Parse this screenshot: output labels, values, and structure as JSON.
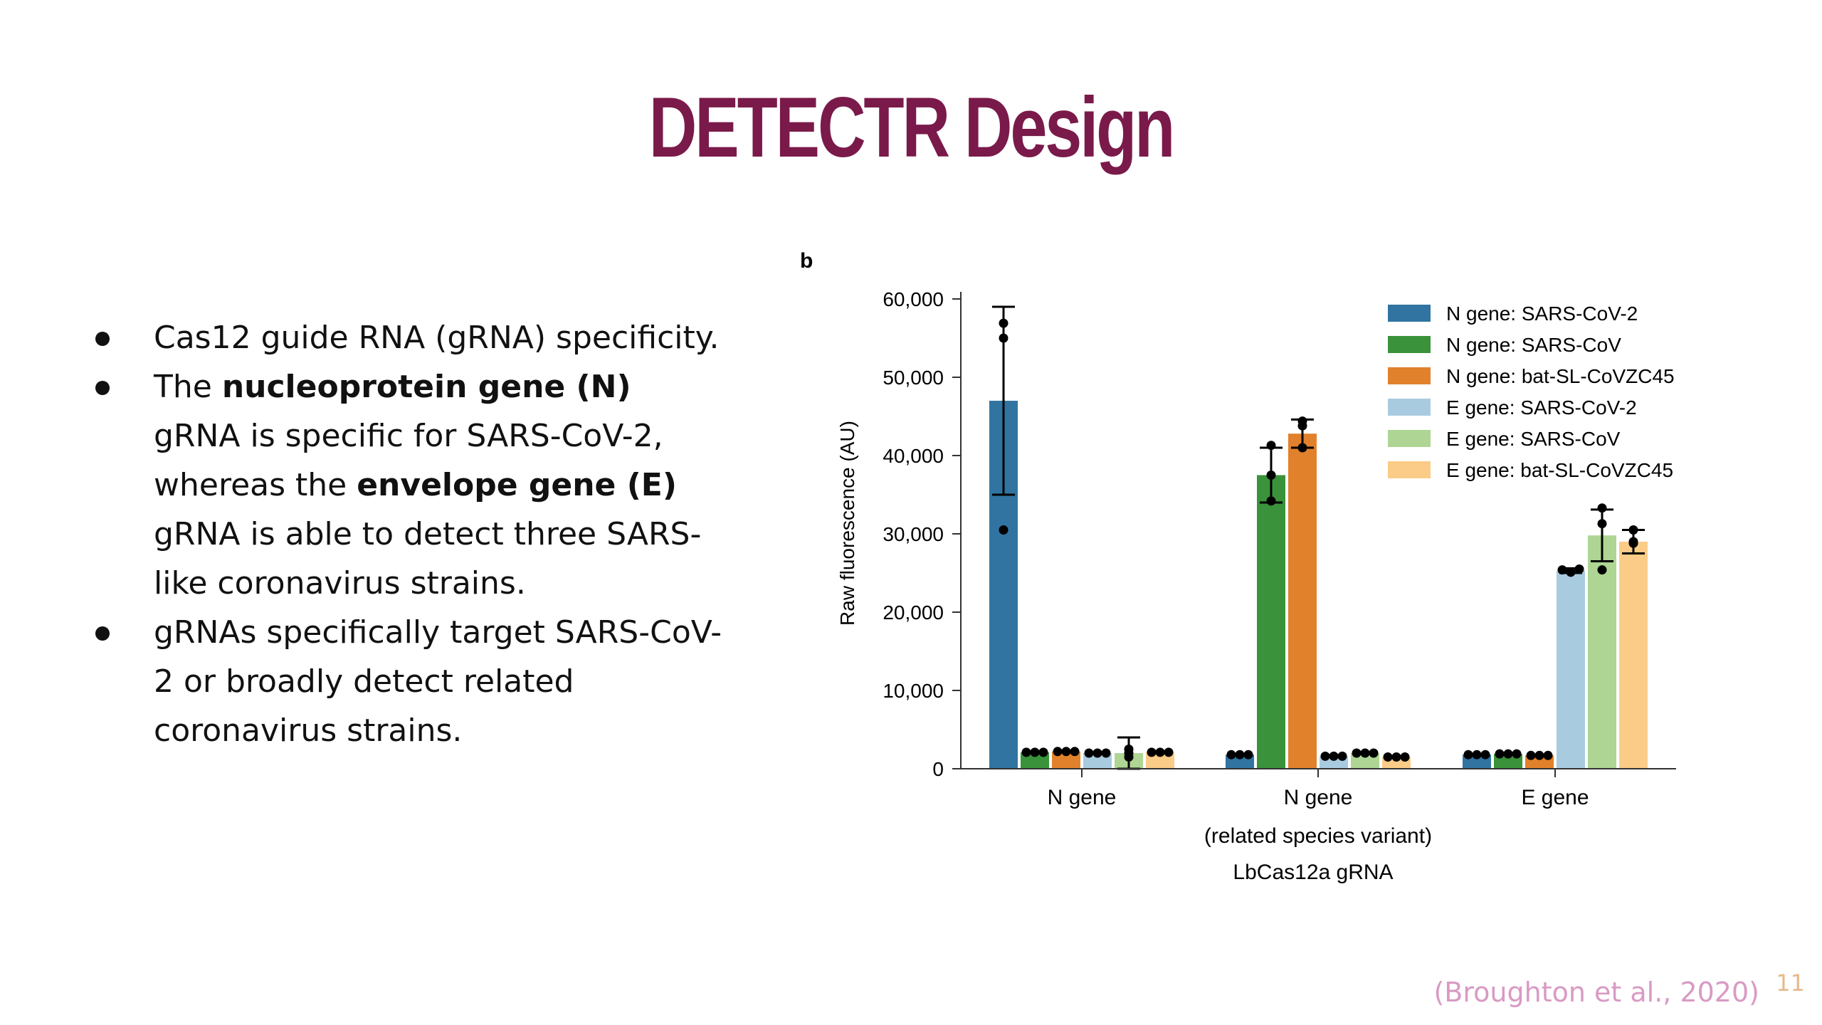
{
  "slide": {
    "title": "DETECTR Design",
    "bullets": [
      {
        "text": "Cas12 guide RNA (gRNA) specificity."
      },
      {
        "t1": "The ",
        "b1": "nucleoprotein gene (N)",
        "t2": " gRNA is specific for SARS-CoV-2, whereas the ",
        "b2": "envelope gene (E)",
        "t3": " gRNA is able to detect three SARS-like coronavirus strains."
      },
      {
        "text": "gRNAs specifically target SARS-CoV-2 or broadly detect related coronavirus strains."
      }
    ],
    "citation": "(Broughton et al., 2020)",
    "page_number": "11"
  },
  "chart_data": {
    "type": "bar",
    "panel_label": "b",
    "ylabel": "Raw fluorescence (AU)",
    "xlabel": "LbCas12a gRNA",
    "ylim": [
      0,
      60000
    ],
    "yticks": [
      0,
      10000,
      20000,
      30000,
      40000,
      50000,
      60000
    ],
    "ytick_labels": [
      "0",
      "10,000",
      "20,000",
      "30,000",
      "40,000",
      "50,000",
      "60,000"
    ],
    "grid": false,
    "legend_position": "top-right",
    "categories": [
      "N gene",
      "N gene",
      "E gene"
    ],
    "category_sublabels": [
      "",
      "(related species variant)",
      ""
    ],
    "series": [
      {
        "name": "N gene: SARS-CoV-2",
        "color": "#3274a1",
        "values": [
          47000,
          1800,
          1800
        ],
        "errors": [
          12000,
          0,
          0
        ],
        "points": [
          [
            56900,
            55000,
            30500
          ],
          [
            1800,
            1800,
            1800
          ],
          [
            1800,
            1800,
            1800
          ]
        ]
      },
      {
        "name": "N gene: SARS-CoV",
        "color": "#3a923a",
        "values": [
          2100,
          37500,
          1900
        ],
        "errors": [
          0,
          3500,
          0
        ],
        "points": [
          [
            2100,
            2100,
            2100
          ],
          [
            41300,
            37500,
            34200
          ],
          [
            1900,
            1900,
            1900
          ]
        ]
      },
      {
        "name": "N gene: bat-SL-CoVZC45",
        "color": "#e1812c",
        "values": [
          2200,
          42800,
          1700
        ],
        "errors": [
          0,
          1800,
          0
        ],
        "points": [
          [
            2200,
            2200,
            2200
          ],
          [
            44400,
            43800,
            41000
          ],
          [
            1700,
            1700,
            1700
          ]
        ]
      },
      {
        "name": "E gene: SARS-CoV-2",
        "color": "#a9cbe0",
        "values": [
          2000,
          1600,
          25300
        ],
        "errors": [
          0,
          0,
          300
        ],
        "points": [
          [
            2000,
            2000,
            2000
          ],
          [
            1600,
            1600,
            1600
          ],
          [
            25400,
            25100,
            25500
          ]
        ]
      },
      {
        "name": "E gene: SARS-CoV",
        "color": "#aed594",
        "values": [
          2000,
          2000,
          29800
        ],
        "errors": [
          2000,
          0,
          3300
        ],
        "points": [
          [
            2500,
            2000,
            1500
          ],
          [
            2000,
            2000,
            2000
          ],
          [
            33300,
            31300,
            25400
          ]
        ]
      },
      {
        "name": "E gene: bat-SL-CoVZC45",
        "color": "#fbcc88",
        "values": [
          2100,
          1500,
          29000
        ],
        "errors": [
          0,
          0,
          1500
        ],
        "points": [
          [
            2100,
            2100,
            2100
          ],
          [
            1500,
            1500,
            1500
          ],
          [
            30500,
            29000,
            28800
          ]
        ]
      }
    ]
  }
}
